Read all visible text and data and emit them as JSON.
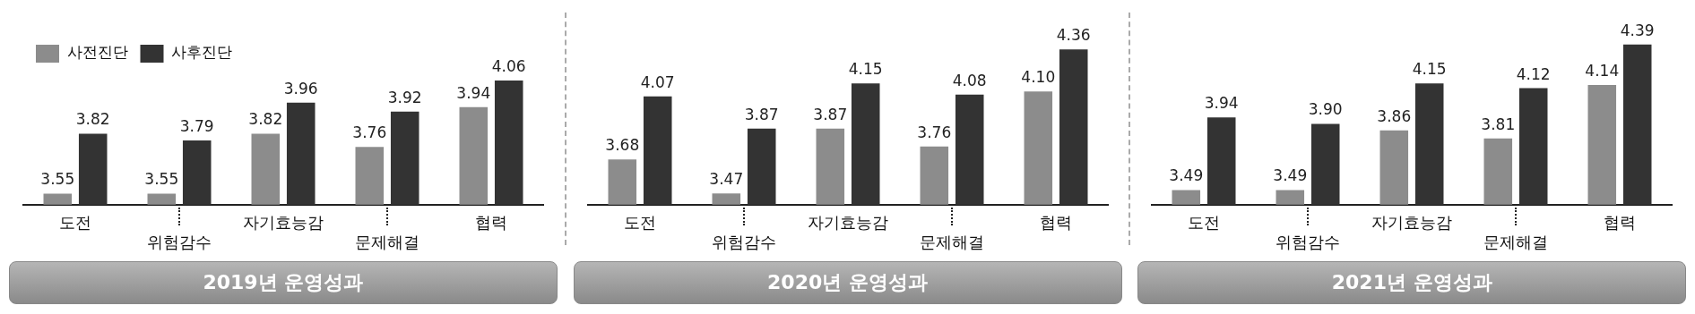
{
  "chart_data": [
    {
      "type": "bar",
      "title": "2019년 운영성과",
      "categories": [
        "도전",
        "위험감수",
        "자기효능감",
        "문제해결",
        "협력"
      ],
      "tick_labels": "x",
      "legend": "top left",
      "series": [
        {
          "name": "사전진단",
          "color": "#8c8c8c",
          "values": [
            3.55,
            3.55,
            3.82,
            3.76,
            3.94
          ],
          "value_labels": [
            "3.55",
            "3.55",
            "3.82",
            "3.76",
            "3.94"
          ]
        },
        {
          "name": "사후진단",
          "color": "#333333",
          "values": [
            3.82,
            3.79,
            3.96,
            3.92,
            4.06
          ],
          "value_labels": [
            "3.82",
            "3.79",
            "3.96",
            "3.92",
            "4.06"
          ]
        }
      ]
    },
    {
      "type": "bar",
      "title": "2020년 운영성과",
      "categories": [
        "도전",
        "위험감수",
        "자기효능감",
        "문제해결",
        "협력"
      ],
      "tick_labels": "x",
      "series": [
        {
          "color": "#8c8c8c",
          "values": [
            3.68,
            3.47,
            3.87,
            3.76,
            4.1
          ],
          "value_labels": [
            "3.68",
            "3.47",
            "3.87",
            "3.76",
            "4.10"
          ]
        },
        {
          "color": "#333333",
          "values": [
            4.07,
            3.87,
            4.15,
            4.08,
            4.36
          ],
          "value_labels": [
            "4.07",
            "3.87",
            "4.15",
            "4.08",
            "4.36"
          ]
        }
      ]
    },
    {
      "type": "bar",
      "title": "2021년 운영성과",
      "categories": [
        "도전",
        "위험감수",
        "자기효능감",
        "문제해결",
        "협력"
      ],
      "tick_labels": "x",
      "series": [
        {
          "color": "#8c8c8c",
          "values": [
            3.49,
            3.49,
            3.86,
            3.81,
            4.14
          ],
          "value_labels": [
            "3.49",
            "3.49",
            "3.86",
            "3.81",
            "4.14"
          ]
        },
        {
          "color": "#333333",
          "values": [
            3.94,
            3.9,
            4.15,
            4.12,
            4.39
          ],
          "value_labels": [
            "3.94",
            "3.90",
            "4.15",
            "4.12",
            "4.39"
          ]
        }
      ]
    }
  ]
}
